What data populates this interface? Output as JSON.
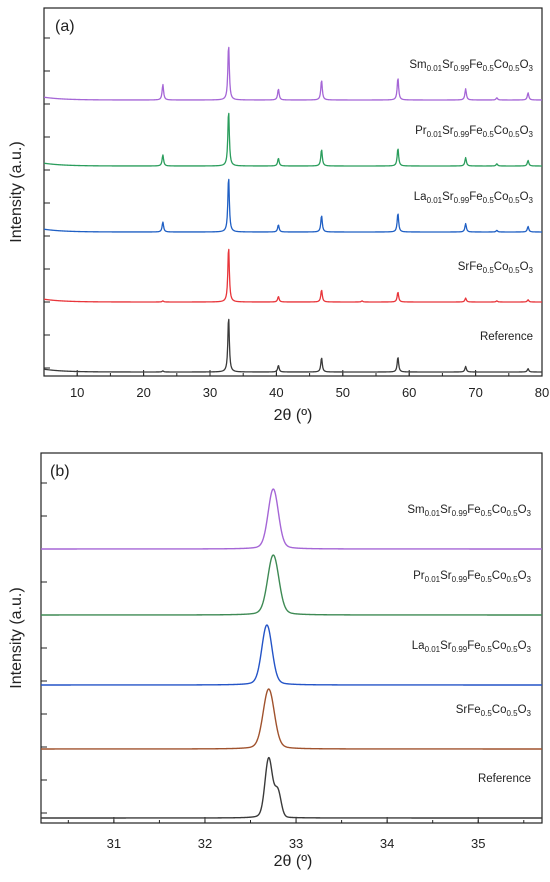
{
  "chart_data": [
    {
      "panel": "(a)",
      "type": "line",
      "xlabel": "2θ (º)",
      "ylabel": "Intensity (a.u.)",
      "xlim": [
        5,
        80
      ],
      "x_ticks": [
        10,
        20,
        30,
        40,
        50,
        60,
        70,
        80
      ],
      "grid": false,
      "series": [
        {
          "name": "Sm0.01Sr0.99Fe0.5Co0.5O3",
          "label_parts": [
            [
              "Sm",
              ""
            ],
            [
              "0.01",
              "sub"
            ],
            [
              "Sr",
              ""
            ],
            [
              "0.99",
              "sub"
            ],
            [
              "Fe",
              ""
            ],
            [
              "0.5",
              "sub"
            ],
            [
              "Co",
              ""
            ],
            [
              "0.5",
              "sub"
            ],
            [
              "O",
              ""
            ],
            [
              "3",
              "sub"
            ]
          ],
          "color": "#a566d6",
          "peaks": [
            [
              22.9,
              0.28
            ],
            [
              32.8,
              1.0
            ],
            [
              40.3,
              0.2
            ],
            [
              46.8,
              0.36
            ],
            [
              58.3,
              0.4
            ],
            [
              68.5,
              0.2
            ],
            [
              73.2,
              0.04
            ],
            [
              77.9,
              0.13
            ]
          ]
        },
        {
          "name": "Pr0.01Sr0.99Fe0.5Co0.5O3",
          "label_parts": [
            [
              "Pr",
              ""
            ],
            [
              "0.01",
              "sub"
            ],
            [
              "Sr",
              ""
            ],
            [
              "0.99",
              "sub"
            ],
            [
              "Fe",
              ""
            ],
            [
              "0.5",
              "sub"
            ],
            [
              "Co",
              ""
            ],
            [
              "0.5",
              "sub"
            ],
            [
              "O",
              ""
            ],
            [
              "3",
              "sub"
            ]
          ],
          "color": "#2a9d5c",
          "peaks": [
            [
              22.9,
              0.2
            ],
            [
              32.8,
              1.0
            ],
            [
              40.3,
              0.14
            ],
            [
              46.8,
              0.3
            ],
            [
              58.3,
              0.32
            ],
            [
              68.5,
              0.15
            ],
            [
              73.2,
              0.04
            ],
            [
              77.9,
              0.1
            ]
          ]
        },
        {
          "name": "La0.01Sr0.99Fe0.5Co0.5O3",
          "label_parts": [
            [
              "La",
              ""
            ],
            [
              "0.01",
              "sub"
            ],
            [
              "Sr",
              ""
            ],
            [
              "0.99",
              "sub"
            ],
            [
              "Fe",
              ""
            ],
            [
              "0.5",
              "sub"
            ],
            [
              "Co",
              ""
            ],
            [
              "0.5",
              "sub"
            ],
            [
              "O",
              ""
            ],
            [
              "3",
              "sub"
            ]
          ],
          "color": "#1f5fc4",
          "peaks": [
            [
              22.9,
              0.18
            ],
            [
              32.8,
              1.0
            ],
            [
              40.3,
              0.13
            ],
            [
              46.8,
              0.3
            ],
            [
              58.3,
              0.34
            ],
            [
              68.5,
              0.15
            ],
            [
              73.2,
              0.03
            ],
            [
              77.9,
              0.1
            ]
          ]
        },
        {
          "name": "SrFe0.5Co0.5O3",
          "label_parts": [
            [
              "SrFe",
              ""
            ],
            [
              "0.5",
              "sub"
            ],
            [
              "Co",
              ""
            ],
            [
              "0.5",
              "sub"
            ],
            [
              "O",
              ""
            ],
            [
              "3",
              "sub"
            ]
          ],
          "color": "#e8353a",
          "peaks": [
            [
              22.9,
              0.02
            ],
            [
              32.8,
              1.0
            ],
            [
              40.3,
              0.1
            ],
            [
              46.8,
              0.22
            ],
            [
              52.9,
              0.02
            ],
            [
              58.3,
              0.18
            ],
            [
              68.5,
              0.07
            ],
            [
              73.2,
              0.02
            ],
            [
              77.9,
              0.04
            ]
          ]
        },
        {
          "name": "Reference",
          "label_parts": [
            [
              "Reference",
              ""
            ]
          ],
          "color": "#3a3a3a",
          "peaks": [
            [
              22.9,
              0.02
            ],
            [
              32.8,
              1.0
            ],
            [
              40.3,
              0.12
            ],
            [
              46.8,
              0.26
            ],
            [
              58.3,
              0.27
            ],
            [
              68.5,
              0.1
            ],
            [
              77.9,
              0.06
            ]
          ]
        }
      ]
    },
    {
      "panel": "(b)",
      "type": "line",
      "xlabel": "2θ (º)",
      "ylabel": "Intensity (a.u.)",
      "xlim": [
        30.2,
        35.7
      ],
      "x_ticks": [
        31,
        32,
        33,
        34,
        35
      ],
      "grid": false,
      "series": [
        {
          "name": "Sm0.01Sr0.99Fe0.5Co0.5O3",
          "label_parts": [
            [
              "Sm",
              ""
            ],
            [
              "0.01",
              "sub"
            ],
            [
              "Sr",
              ""
            ],
            [
              "0.99",
              "sub"
            ],
            [
              "Fe",
              ""
            ],
            [
              "0.5",
              "sub"
            ],
            [
              "Co",
              ""
            ],
            [
              "0.5",
              "sub"
            ],
            [
              "O",
              ""
            ],
            [
              "3",
              "sub"
            ]
          ],
          "color": "#a566d6",
          "peak_center": 32.75,
          "peak_width": 0.055,
          "peak_height": 1.0
        },
        {
          "name": "Pr0.01Sr0.99Fe0.5Co0.5O3",
          "label_parts": [
            [
              "Pr",
              ""
            ],
            [
              "0.01",
              "sub"
            ],
            [
              "Sr",
              ""
            ],
            [
              "0.99",
              "sub"
            ],
            [
              "Fe",
              ""
            ],
            [
              "0.5",
              "sub"
            ],
            [
              "Co",
              ""
            ],
            [
              "0.5",
              "sub"
            ],
            [
              "O",
              ""
            ],
            [
              "3",
              "sub"
            ]
          ],
          "color": "#3e8a54",
          "peak_center": 32.75,
          "peak_width": 0.06,
          "peak_height": 1.0
        },
        {
          "name": "La0.01Sr0.99Fe0.5Co0.5O3",
          "label_parts": [
            [
              "La",
              ""
            ],
            [
              "0.01",
              "sub"
            ],
            [
              "Sr",
              ""
            ],
            [
              "0.99",
              "sub"
            ],
            [
              "Fe",
              ""
            ],
            [
              "0.5",
              "sub"
            ],
            [
              "Co",
              ""
            ],
            [
              "0.5",
              "sub"
            ],
            [
              "O",
              ""
            ],
            [
              "3",
              "sub"
            ]
          ],
          "color": "#2454c7",
          "peak_center": 32.68,
          "peak_width": 0.055,
          "peak_height": 1.0
        },
        {
          "name": "SrFe0.5Co0.5O3",
          "label_parts": [
            [
              "SrFe",
              ""
            ],
            [
              "0.5",
              "sub"
            ],
            [
              "Co",
              ""
            ],
            [
              "0.5",
              "sub"
            ],
            [
              "O",
              ""
            ],
            [
              "3",
              "sub"
            ]
          ],
          "color": "#a0522d",
          "peak_center": 32.7,
          "peak_width": 0.06,
          "peak_height": 1.0
        },
        {
          "name": "Reference",
          "label_parts": [
            [
              "Reference",
              ""
            ]
          ],
          "color": "#3a3a3a",
          "peak_center": 32.7,
          "peak_width": 0.04,
          "peak_height": 1.0,
          "shoulder_center": 32.8,
          "shoulder_width": 0.035,
          "shoulder_height": 0.42
        }
      ]
    }
  ]
}
